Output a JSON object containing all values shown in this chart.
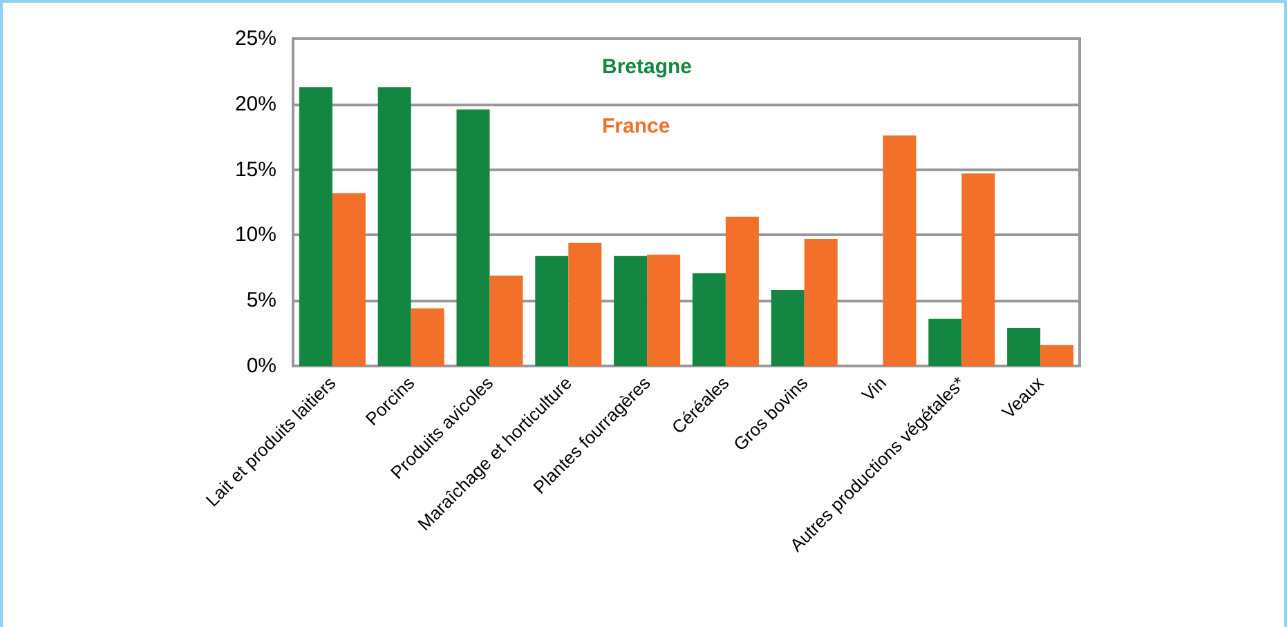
{
  "chart_data": {
    "type": "bar",
    "categories": [
      "Lait et produits laitiers",
      "Porcins",
      "Produits avicoles",
      "Maraîchage et horticulture",
      "Plantes fourragères",
      "Céréales",
      "Gros bovins",
      "Vin",
      "Autres productions végétales*",
      "Veaux"
    ],
    "series": [
      {
        "name": "Bretagne",
        "color": "#138741",
        "values": [
          21.3,
          21.3,
          19.6,
          8.4,
          8.4,
          7.1,
          5.8,
          null,
          3.6,
          2.9
        ]
      },
      {
        "name": "France",
        "color": "#f2702a",
        "values": [
          13.2,
          4.4,
          6.9,
          9.4,
          8.5,
          11.4,
          9.7,
          17.6,
          14.7,
          1.6
        ]
      }
    ],
    "ylim": [
      0,
      25
    ],
    "yticks": [
      {
        "value": 0,
        "label": "0%"
      },
      {
        "value": 5,
        "label": "5%"
      },
      {
        "value": 10,
        "label": "10%"
      },
      {
        "value": 15,
        "label": "15%"
      },
      {
        "value": 20,
        "label": "20%"
      },
      {
        "value": 25,
        "label": "25%"
      }
    ],
    "grid": "y",
    "legend": "top"
  }
}
